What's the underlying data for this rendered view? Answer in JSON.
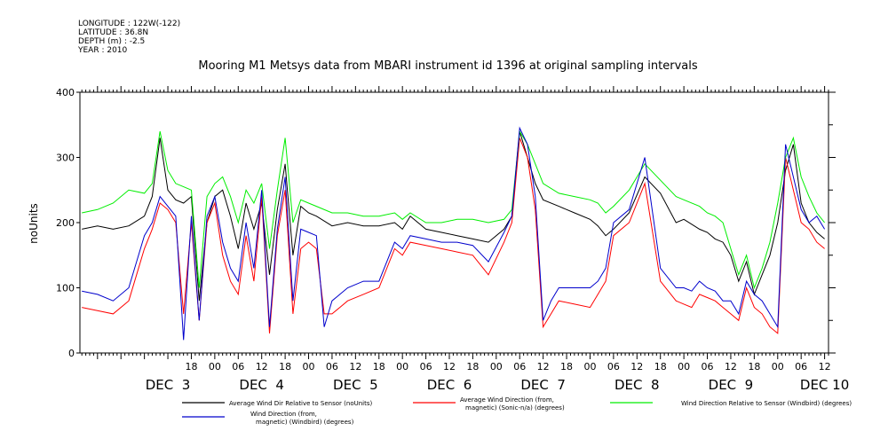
{
  "header": {
    "longitude": "LONGITUDE : 122W(-122)",
    "latitude": "LATITUDE : 36.8N",
    "depth": "DEPTH (m) : -2.5",
    "year": "YEAR : 2010"
  },
  "chart_data": {
    "type": "line",
    "title": "Mooring M1 Metsys data from MBARI instrument id 1396 at original sampling intervals",
    "ylabel": "noUnits",
    "xlabel": "",
    "ylim": [
      0,
      400
    ],
    "xlim_hours": [
      -10.5,
      181
    ],
    "y_ticks": [
      0,
      100,
      200,
      300,
      400
    ],
    "x_hour_ticks": [
      {
        "h": 18,
        "label": "18"
      },
      {
        "h": 24,
        "label": "00"
      },
      {
        "h": 30,
        "label": "06"
      },
      {
        "h": 36,
        "label": "12"
      },
      {
        "h": 42,
        "label": "18"
      },
      {
        "h": 48,
        "label": "00"
      },
      {
        "h": 54,
        "label": "06"
      },
      {
        "h": 60,
        "label": "12"
      },
      {
        "h": 66,
        "label": "18"
      },
      {
        "h": 72,
        "label": "00"
      },
      {
        "h": 78,
        "label": "06"
      },
      {
        "h": 84,
        "label": "12"
      },
      {
        "h": 90,
        "label": "18"
      },
      {
        "h": 96,
        "label": "00"
      },
      {
        "h": 102,
        "label": "06"
      },
      {
        "h": 108,
        "label": "12"
      },
      {
        "h": 114,
        "label": "18"
      },
      {
        "h": 120,
        "label": "00"
      },
      {
        "h": 126,
        "label": "06"
      },
      {
        "h": 132,
        "label": "12"
      },
      {
        "h": 138,
        "label": "18"
      },
      {
        "h": 144,
        "label": "00"
      },
      {
        "h": 150,
        "label": "06"
      },
      {
        "h": 156,
        "label": "12"
      },
      {
        "h": 162,
        "label": "18"
      },
      {
        "h": 168,
        "label": "00"
      },
      {
        "h": 174,
        "label": "06"
      },
      {
        "h": 180,
        "label": "12"
      }
    ],
    "day_labels": [
      {
        "h": 12,
        "label": "DEC  3"
      },
      {
        "h": 36,
        "label": "DEC  4"
      },
      {
        "h": 60,
        "label": "DEC  5"
      },
      {
        "h": 84,
        "label": "DEC  6"
      },
      {
        "h": 108,
        "label": "DEC  7"
      },
      {
        "h": 132,
        "label": "DEC  8"
      },
      {
        "h": 156,
        "label": "DEC  9"
      },
      {
        "h": 180,
        "label": "DEC 10"
      }
    ],
    "x_units_note": "x = hours since 00:00 Dec 3, 2010",
    "series": [
      {
        "name": "Average Wind Dir Relative to Sensor (noUnits)",
        "color": "#000000",
        "x": [
          -10,
          -6,
          -2,
          2,
          6,
          8,
          10,
          12,
          14,
          16,
          18,
          20,
          22,
          24,
          26,
          28,
          30,
          32,
          34,
          36,
          38,
          40,
          42,
          44,
          46,
          48,
          50,
          54,
          58,
          62,
          66,
          70,
          72,
          74,
          78,
          82,
          86,
          90,
          94,
          98,
          100,
          102,
          104,
          106,
          108,
          112,
          116,
          120,
          122,
          124,
          126,
          130,
          134,
          138,
          142,
          144,
          148,
          150,
          152,
          154,
          156,
          158,
          160,
          162,
          164,
          166,
          168,
          170,
          172,
          174,
          176,
          178,
          180
        ],
        "y": [
          190,
          195,
          190,
          195,
          210,
          240,
          330,
          250,
          235,
          230,
          240,
          80,
          200,
          240,
          250,
          210,
          160,
          230,
          190,
          230,
          120,
          220,
          290,
          150,
          225,
          215,
          210,
          195,
          200,
          195,
          195,
          200,
          190,
          210,
          190,
          185,
          180,
          175,
          170,
          190,
          210,
          340,
          300,
          260,
          235,
          225,
          215,
          205,
          195,
          180,
          190,
          215,
          270,
          245,
          200,
          205,
          190,
          185,
          175,
          170,
          150,
          110,
          140,
          90,
          120,
          150,
          200,
          280,
          320,
          230,
          200,
          185,
          175
        ]
      },
      {
        "name": "Average Wind Direction (from, magnetic) (Sonic-n/a) (degrees)",
        "color": "#ff0000",
        "x": [
          -10,
          -6,
          -2,
          2,
          4,
          6,
          8,
          10,
          12,
          14,
          16,
          18,
          20,
          22,
          24,
          26,
          28,
          30,
          32,
          34,
          36,
          38,
          40,
          42,
          44,
          46,
          48,
          50,
          52,
          54,
          56,
          58,
          62,
          66,
          70,
          72,
          74,
          78,
          82,
          86,
          90,
          94,
          98,
          100,
          102,
          104,
          106,
          108,
          110,
          112,
          116,
          120,
          122,
          124,
          126,
          130,
          134,
          138,
          142,
          144,
          146,
          148,
          150,
          152,
          154,
          156,
          158,
          160,
          162,
          164,
          166,
          168,
          170,
          172,
          174,
          176,
          178,
          180
        ],
        "y": [
          70,
          65,
          60,
          80,
          120,
          160,
          190,
          230,
          220,
          200,
          60,
          200,
          50,
          200,
          230,
          150,
          110,
          90,
          180,
          110,
          240,
          30,
          180,
          250,
          60,
          160,
          170,
          160,
          60,
          60,
          70,
          80,
          90,
          100,
          160,
          150,
          170,
          165,
          160,
          155,
          150,
          120,
          170,
          200,
          330,
          300,
          220,
          40,
          60,
          80,
          75,
          70,
          90,
          110,
          180,
          200,
          260,
          110,
          80,
          75,
          70,
          90,
          85,
          80,
          70,
          60,
          50,
          100,
          70,
          60,
          40,
          30,
          300,
          250,
          200,
          190,
          170,
          160
        ]
      },
      {
        "name": "Wind Direction Relative to Sensor (Windbird) (degrees)",
        "color": "#00ee00",
        "x": [
          -10,
          -6,
          -2,
          2,
          6,
          8,
          10,
          12,
          14,
          16,
          18,
          20,
          22,
          24,
          26,
          28,
          30,
          32,
          34,
          36,
          38,
          40,
          42,
          44,
          46,
          48,
          50,
          54,
          58,
          62,
          66,
          70,
          72,
          74,
          78,
          82,
          86,
          90,
          94,
          98,
          100,
          102,
          104,
          106,
          108,
          112,
          116,
          120,
          122,
          124,
          126,
          130,
          134,
          138,
          142,
          144,
          148,
          150,
          152,
          154,
          156,
          158,
          160,
          162,
          164,
          166,
          168,
          170,
          172,
          174,
          176,
          178,
          180
        ],
        "y": [
          215,
          220,
          230,
          250,
          245,
          260,
          340,
          280,
          260,
          255,
          250,
          100,
          240,
          260,
          270,
          240,
          200,
          250,
          230,
          260,
          160,
          250,
          330,
          200,
          235,
          230,
          225,
          215,
          215,
          210,
          210,
          215,
          205,
          215,
          200,
          200,
          205,
          205,
          200,
          205,
          220,
          340,
          320,
          290,
          260,
          245,
          240,
          235,
          230,
          215,
          225,
          250,
          290,
          265,
          240,
          235,
          225,
          215,
          210,
          200,
          160,
          120,
          150,
          100,
          130,
          170,
          230,
          300,
          330,
          270,
          240,
          215,
          200
        ]
      },
      {
        "name": "Wind Direction (from, magnetic) (Windbird) (degrees)",
        "color": "#0000cc",
        "x": [
          -10,
          -6,
          -2,
          2,
          4,
          6,
          8,
          10,
          12,
          14,
          16,
          18,
          20,
          22,
          24,
          26,
          28,
          30,
          32,
          34,
          36,
          38,
          40,
          42,
          44,
          46,
          48,
          50,
          52,
          54,
          56,
          58,
          62,
          66,
          70,
          72,
          74,
          78,
          82,
          86,
          90,
          94,
          98,
          100,
          102,
          104,
          106,
          108,
          110,
          112,
          116,
          120,
          122,
          124,
          126,
          130,
          134,
          138,
          142,
          144,
          146,
          148,
          150,
          152,
          154,
          156,
          158,
          160,
          162,
          164,
          166,
          168,
          170,
          172,
          174,
          176,
          178,
          180
        ],
        "y": [
          95,
          90,
          80,
          100,
          140,
          180,
          200,
          240,
          225,
          210,
          20,
          210,
          50,
          210,
          240,
          170,
          130,
          110,
          200,
          130,
          250,
          40,
          190,
          270,
          80,
          190,
          185,
          180,
          40,
          80,
          90,
          100,
          110,
          110,
          170,
          160,
          180,
          175,
          170,
          170,
          165,
          140,
          185,
          210,
          345,
          320,
          240,
          50,
          80,
          100,
          100,
          100,
          110,
          130,
          200,
          220,
          300,
          130,
          100,
          100,
          95,
          110,
          100,
          95,
          80,
          80,
          60,
          110,
          90,
          80,
          60,
          40,
          320,
          270,
          220,
          200,
          210,
          190
        ]
      }
    ],
    "legend": [
      {
        "label_line1": "Average Wind Dir Relative to Sensor (noUnits)",
        "label_line2": "",
        "color": "#000000"
      },
      {
        "label_line1": "Average Wind Direction (from,",
        "label_line2": "magnetic) (Sonic-n/a) (degrees)",
        "color": "#ff0000"
      },
      {
        "label_line1": "Wind Direction Relative to Sensor (Windbird) (degrees)",
        "label_line2": "",
        "color": "#00ee00"
      },
      {
        "label_line1": "Wind Direction (from,",
        "label_line2": "magnetic) (Windbird) (degrees)",
        "color": "#0000cc"
      }
    ]
  }
}
